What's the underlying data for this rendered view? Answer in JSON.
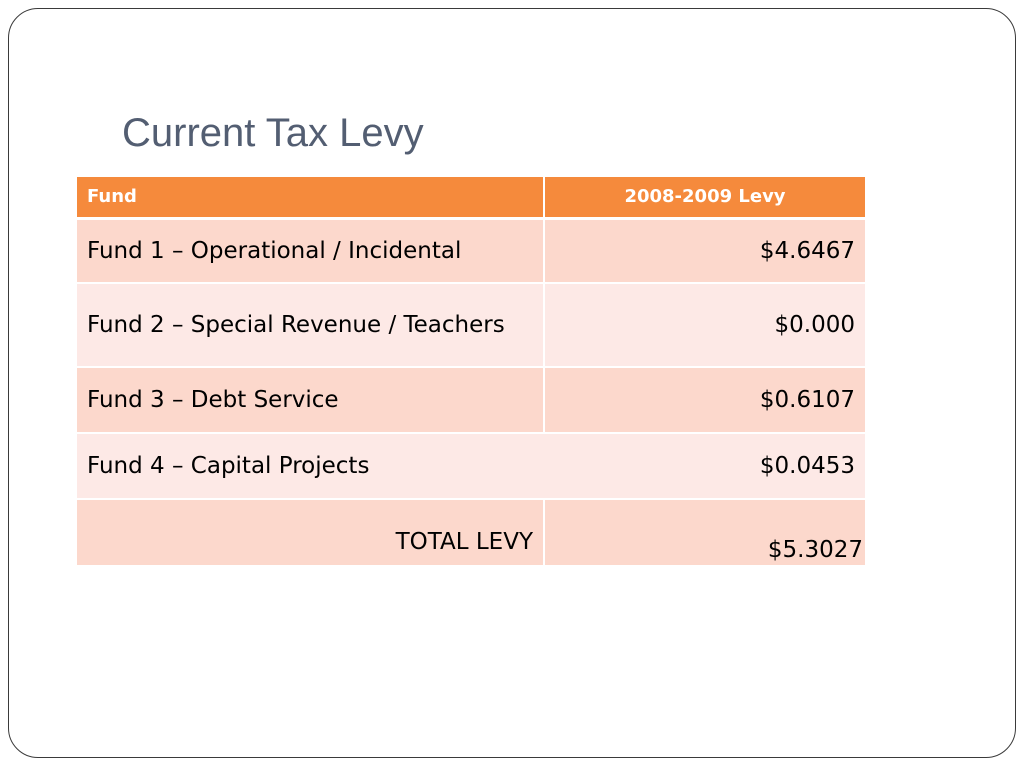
{
  "slide": {
    "title": "Current Tax Levy"
  },
  "table": {
    "headers": {
      "fund": "Fund",
      "levy": "2008-2009 Levy"
    },
    "rows": [
      {
        "fund": "Fund 1 – Operational / Incidental",
        "levy": "$4.6467"
      },
      {
        "fund": "Fund 2 – Special Revenue / Teachers",
        "levy": "$0.000"
      },
      {
        "fund": "Fund 3 – Debt Service",
        "levy": "$0.6107"
      },
      {
        "fund": "Fund 4 – Capital Projects",
        "levy": "$0.0453"
      }
    ],
    "total": {
      "label": "TOTAL LEVY",
      "value": "$5.3027"
    }
  },
  "colors": {
    "header_bg": "#f58a3c",
    "row_dark": "#fcd8cc",
    "row_light": "#fde9e6",
    "title_text": "#535e72"
  }
}
